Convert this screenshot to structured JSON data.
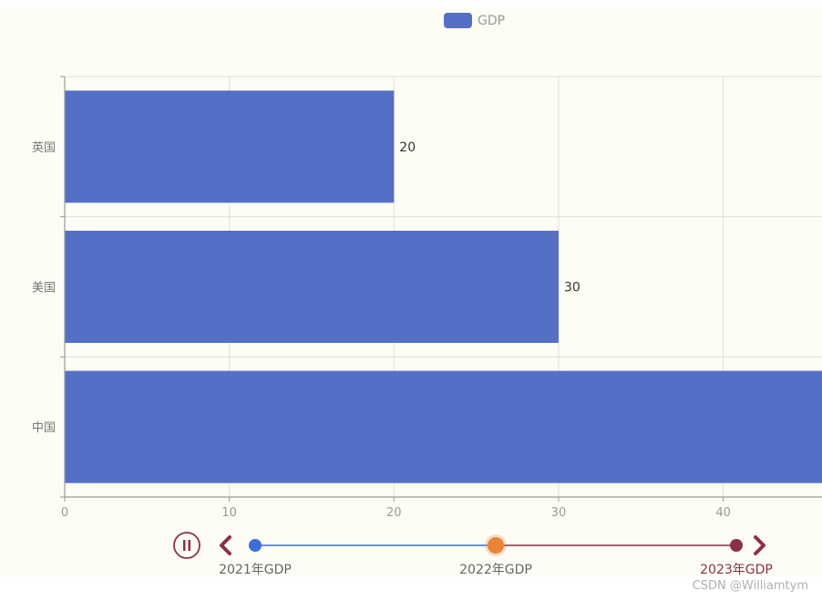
{
  "chart_data": {
    "type": "bar",
    "orientation": "horizontal",
    "categories": [
      "英国",
      "美国",
      "中国"
    ],
    "series": [
      {
        "name": "GDP",
        "values": [
          20,
          30,
          50
        ]
      }
    ],
    "data_labels": [
      "20",
      "30",
      ""
    ],
    "xlim": [
      0,
      46
    ],
    "x_ticks": [
      0,
      10,
      20,
      30,
      40
    ],
    "grid": true,
    "legend_position": "top-center",
    "colors": {
      "bar": "#5470c6",
      "background": "#fdfcf5"
    }
  },
  "timeline": {
    "items": [
      "2021年GDP",
      "2022年GDP",
      "2023年GDP"
    ],
    "current_index": 1,
    "playing": true,
    "colors": {
      "passed": "#3b6fd8",
      "current": "#e8833a",
      "upcoming": "#8b3048",
      "control": "#8b3048"
    },
    "icons": {
      "play_pause": "pause-icon",
      "prev": "chevron-left-icon",
      "next": "chevron-right-icon"
    }
  },
  "watermark": "CSDN @Williamtym"
}
